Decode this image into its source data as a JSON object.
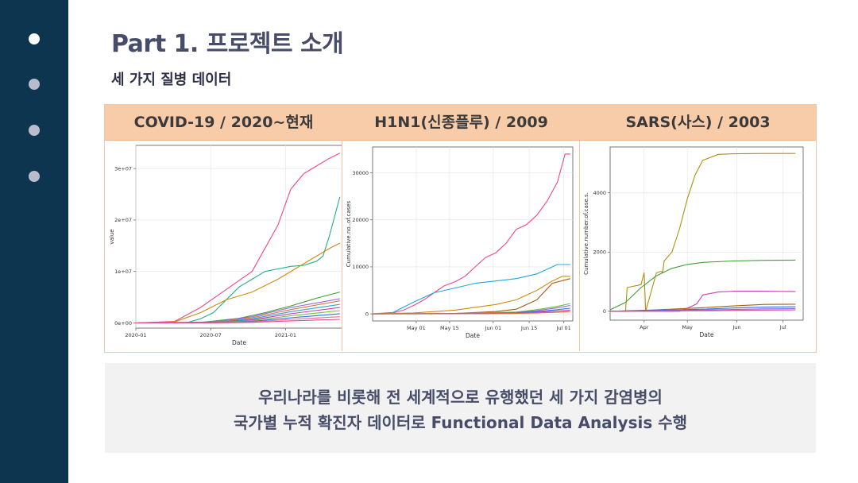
{
  "slide": {
    "title": "Part 1. 프로젝트 소개",
    "subtitle": "세 가지 질병 데이터",
    "nav_dots": 4,
    "active_dot": 0
  },
  "columns": [
    {
      "title": "COVID-19 / 2020~현재"
    },
    {
      "title": "H1N1(신종플루) / 2009"
    },
    {
      "title": "SARS(사스) / 2003"
    }
  ],
  "footer": {
    "line1": "우리나라를 비롯해 전 세계적으로 유행했던 세 가지 감염병의",
    "line2": "국가별 누적 확진자 데이터로 Functional Data Analysis 수행"
  },
  "colors": {
    "sidebar": "#0d3550",
    "header": "#f8cba9",
    "title_text": "#474d69"
  },
  "chart_data": [
    {
      "type": "line",
      "xlabel": "Date",
      "ylabel": "value",
      "x_ticks": [
        "2020-01",
        "2020-07",
        "2021-01"
      ],
      "y_ticks": [
        "0e+00",
        "1e+07",
        "2e+07",
        "3e+07"
      ],
      "xlim": [
        0,
        16
      ],
      "ylim": [
        -1000000,
        34500000
      ],
      "grid": true,
      "series": [
        {
          "color": "#f0468a",
          "x": [
            0,
            3,
            5,
            7,
            9,
            11,
            12,
            13,
            14,
            15,
            15.8
          ],
          "y": [
            0,
            300000,
            3000000,
            6500000,
            10000000,
            19000000,
            26000000,
            29000000,
            30500000,
            32000000,
            33000000
          ]
        },
        {
          "color": "#1fb08c",
          "x": [
            0,
            4,
            5,
            6,
            7,
            8,
            9,
            10,
            11,
            12,
            13,
            14,
            14.5,
            15,
            15.8
          ],
          "y": [
            0,
            100000,
            800000,
            2000000,
            4500000,
            7000000,
            8500000,
            10000000,
            10500000,
            11000000,
            11200000,
            12000000,
            13000000,
            17000000,
            24500000
          ]
        },
        {
          "color": "#d08a10",
          "x": [
            0,
            3,
            5,
            7,
            9,
            11,
            13,
            15,
            15.8
          ],
          "y": [
            0,
            200000,
            2000000,
            4500000,
            6000000,
            8500000,
            11500000,
            14500000,
            15500000
          ]
        },
        {
          "color": "#3f9e3a",
          "x": [
            0,
            5,
            8,
            10,
            12,
            14,
            15.8
          ],
          "y": [
            0,
            100000,
            900000,
            2000000,
            3300000,
            4800000,
            6000000
          ]
        },
        {
          "color": "#8a6dd8",
          "x": [
            0,
            6,
            9,
            12,
            15.8
          ],
          "y": [
            0,
            200000,
            1200000,
            3000000,
            4700000
          ]
        },
        {
          "color": "#e07040",
          "x": [
            0,
            6,
            9,
            12,
            15.8
          ],
          "y": [
            0,
            150000,
            1000000,
            2600000,
            4300000
          ]
        },
        {
          "color": "#2aa3d8",
          "x": [
            0,
            6,
            9,
            12,
            15.8
          ],
          "y": [
            0,
            100000,
            800000,
            2200000,
            3600000
          ]
        },
        {
          "color": "#c83fb0",
          "x": [
            0,
            6,
            9,
            12,
            15.8
          ],
          "y": [
            0,
            80000,
            600000,
            1800000,
            3000000
          ]
        },
        {
          "color": "#6cbf3a",
          "x": [
            0,
            6,
            9,
            12,
            15.8
          ],
          "y": [
            0,
            60000,
            450000,
            1400000,
            2400000
          ]
        },
        {
          "color": "#3070e0",
          "x": [
            0,
            6,
            9,
            12,
            15.8
          ],
          "y": [
            0,
            40000,
            300000,
            1000000,
            1800000
          ]
        },
        {
          "color": "#f06aa0",
          "x": [
            0,
            6,
            9,
            12,
            15.8
          ],
          "y": [
            0,
            30000,
            200000,
            700000,
            1200000
          ]
        },
        {
          "color": "#e04a90",
          "x": [
            0,
            6,
            9,
            12,
            15.8
          ],
          "y": [
            0,
            20000,
            120000,
            400000,
            700000
          ]
        }
      ]
    },
    {
      "type": "line",
      "xlabel": "Date",
      "ylabel": "Cumulative.no..of.cases",
      "x_ticks": [
        "May 01",
        "May 15",
        "Jun 01",
        "Jun 15",
        "Jul 01"
      ],
      "y_ticks": [
        "0",
        "10000",
        "20000",
        "30000"
      ],
      "xlim": [
        0,
        78
      ],
      "ylim": [
        -1500,
        35500
      ],
      "grid": true,
      "series": [
        {
          "color": "#f0468a",
          "x": [
            0,
            8,
            12,
            16,
            20,
            24,
            28,
            32,
            36,
            40,
            44,
            48,
            52,
            56,
            60,
            64,
            68,
            72,
            75,
            77
          ],
          "y": [
            0,
            200,
            800,
            1800,
            3000,
            4500,
            6000,
            6800,
            8000,
            10000,
            12000,
            13000,
            15000,
            18000,
            19000,
            21000,
            24000,
            28000,
            34000,
            34000
          ]
        },
        {
          "color": "#1fa8e0",
          "x": [
            0,
            8,
            16,
            24,
            32,
            40,
            48,
            56,
            64,
            72,
            77
          ],
          "y": [
            0,
            300,
            2500,
            4500,
            5500,
            6500,
            7000,
            7500,
            8500,
            10500,
            10500
          ]
        },
        {
          "color": "#d08a10",
          "x": [
            0,
            16,
            32,
            48,
            56,
            64,
            70,
            74,
            77
          ],
          "y": [
            0,
            200,
            800,
            2000,
            3000,
            5000,
            7000,
            8000,
            8000
          ]
        },
        {
          "color": "#a85a10",
          "x": [
            0,
            32,
            48,
            56,
            64,
            70,
            77
          ],
          "y": [
            0,
            100,
            500,
            1000,
            3000,
            6500,
            7500
          ]
        },
        {
          "color": "#6cbf3a",
          "x": [
            0,
            32,
            56,
            64,
            72,
            77
          ],
          "y": [
            0,
            100,
            400,
            900,
            1600,
            2200
          ]
        },
        {
          "color": "#8a6dd8",
          "x": [
            0,
            40,
            56,
            64,
            72,
            77
          ],
          "y": [
            0,
            80,
            300,
            700,
            1300,
            1800
          ]
        },
        {
          "color": "#3070e0",
          "x": [
            0,
            40,
            56,
            64,
            72,
            77
          ],
          "y": [
            0,
            50,
            200,
            500,
            900,
            1200
          ]
        },
        {
          "color": "#c83fb0",
          "x": [
            0,
            40,
            56,
            64,
            72,
            77
          ],
          "y": [
            0,
            30,
            150,
            350,
            600,
            800
          ]
        },
        {
          "color": "#e07040",
          "x": [
            0,
            40,
            56,
            64,
            72,
            77
          ],
          "y": [
            0,
            20,
            80,
            200,
            350,
            500
          ]
        }
      ]
    },
    {
      "type": "line",
      "xlabel": "Date",
      "ylabel": "Cumulative.number.of.case.s.",
      "x_ticks": [
        "Apr",
        "May",
        "Jun",
        "Jul"
      ],
      "y_ticks": [
        "0",
        "2000",
        "4000"
      ],
      "xlim": [
        0,
        125
      ],
      "ylim": [
        -300,
        5550
      ],
      "grid": true,
      "series": [
        {
          "color": "#b09010",
          "x": [
            0,
            10,
            11,
            20,
            22,
            23,
            30,
            33,
            34,
            35,
            40,
            45,
            50,
            55,
            60,
            70,
            80,
            100,
            120
          ],
          "y": [
            0,
            0,
            800,
            900,
            1300,
            0,
            1300,
            1350,
            1300,
            1700,
            2000,
            2800,
            3800,
            4600,
            5100,
            5300,
            5320,
            5330,
            5330
          ]
        },
        {
          "color": "#3f9e3a",
          "x": [
            0,
            10,
            20,
            30,
            40,
            50,
            60,
            80,
            100,
            120
          ],
          "y": [
            50,
            300,
            800,
            1200,
            1450,
            1580,
            1650,
            1700,
            1720,
            1730
          ]
        },
        {
          "color": "#c83fb0",
          "x": [
            0,
            45,
            52,
            56,
            60,
            70,
            80,
            100,
            120
          ],
          "y": [
            0,
            0,
            150,
            250,
            550,
            650,
            680,
            680,
            670
          ]
        },
        {
          "color": "#a86010",
          "x": [
            0,
            30,
            60,
            80,
            100,
            120
          ],
          "y": [
            0,
            50,
            120,
            180,
            230,
            240
          ]
        },
        {
          "color": "#3070e0",
          "x": [
            0,
            30,
            60,
            80,
            100,
            120
          ],
          "y": [
            0,
            30,
            70,
            110,
            140,
            150
          ]
        },
        {
          "color": "#8a6dd8",
          "x": [
            0,
            30,
            60,
            80,
            100,
            120
          ],
          "y": [
            0,
            20,
            40,
            60,
            80,
            90
          ]
        },
        {
          "color": "#e04a90",
          "x": [
            0,
            30,
            60,
            80,
            100,
            120
          ],
          "y": [
            0,
            10,
            20,
            30,
            40,
            45
          ]
        }
      ]
    }
  ]
}
